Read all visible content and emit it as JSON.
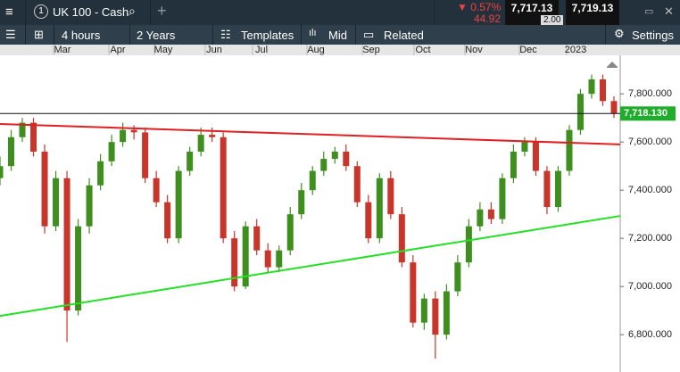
{
  "header": {
    "instrument": "UK 100 - Cash",
    "change_pct": "0.57%",
    "change_pts": "44.92",
    "sell": "7,717.13",
    "buy": "7,719.13",
    "spread": "2.00"
  },
  "toolbar": {
    "interval": "4 hours",
    "range": "2 Years",
    "templates": "Templates",
    "price_type": "Mid",
    "related": "Related",
    "settings": "Settings"
  },
  "chart_data": {
    "type": "candlestick",
    "x_labels": [
      "Mar",
      "Apr",
      "May",
      "Jun",
      "Jul",
      "Aug",
      "Sep",
      "Oct",
      "Nov",
      "Dec",
      "2023"
    ],
    "open": [
      7450,
      7500,
      7620,
      7680,
      7560,
      7250,
      7450,
      6900,
      7250,
      7420,
      7520,
      7600,
      7650,
      7640,
      7450,
      7350,
      7200,
      7480,
      7560,
      7630,
      7620,
      7200,
      7000,
      7250,
      7150,
      7080,
      7150,
      7300,
      7400,
      7480,
      7530,
      7560,
      7500,
      7350,
      7200,
      7450,
      7300,
      7100,
      6850,
      6950,
      6800,
      6980,
      7100,
      7250,
      7320,
      7280,
      7450,
      7560,
      7600,
      7480,
      7330,
      7480,
      7650,
      7800,
      7860,
      7770
    ],
    "high": [
      7540,
      7650,
      7700,
      7700,
      7590,
      7480,
      7480,
      7280,
      7450,
      7550,
      7630,
      7680,
      7670,
      7660,
      7480,
      7380,
      7500,
      7580,
      7660,
      7660,
      7640,
      7230,
      7270,
      7280,
      7180,
      7170,
      7330,
      7430,
      7500,
      7560,
      7580,
      7590,
      7520,
      7380,
      7470,
      7480,
      7330,
      7130,
      6970,
      6980,
      7010,
      7130,
      7280,
      7350,
      7350,
      7470,
      7590,
      7620,
      7620,
      7500,
      7500,
      7670,
      7820,
      7880,
      7880,
      7790
    ],
    "low": [
      7420,
      7480,
      7600,
      7540,
      7220,
      7230,
      6770,
      6880,
      7220,
      7400,
      7500,
      7580,
      7610,
      7430,
      7330,
      7180,
      7180,
      7460,
      7540,
      7600,
      7180,
      6980,
      6990,
      7130,
      7060,
      7060,
      7130,
      7280,
      7380,
      7460,
      7510,
      7480,
      7330,
      7180,
      7180,
      7280,
      7080,
      6830,
      6820,
      6700,
      6780,
      6960,
      7080,
      7230,
      7260,
      7260,
      7430,
      7540,
      7460,
      7300,
      7310,
      7460,
      7630,
      7780,
      7750,
      7700
    ],
    "close": [
      7500,
      7620,
      7680,
      7560,
      7250,
      7450,
      6900,
      7250,
      7420,
      7520,
      7600,
      7650,
      7640,
      7450,
      7350,
      7200,
      7480,
      7560,
      7630,
      7620,
      7200,
      7000,
      7250,
      7150,
      7080,
      7150,
      7300,
      7400,
      7480,
      7530,
      7560,
      7500,
      7350,
      7200,
      7450,
      7300,
      7100,
      6850,
      6950,
      6800,
      6980,
      7100,
      7250,
      7320,
      7280,
      7450,
      7560,
      7600,
      7480,
      7330,
      7480,
      7650,
      7800,
      7860,
      7770,
      7718
    ],
    "up_color": "#3f8f1f",
    "down_color": "#c8352b",
    "ylim": [
      6645,
      7960
    ],
    "yticks": [
      {
        "value": 6800,
        "label": "6,800.000"
      },
      {
        "value": 7000,
        "label": "7,000.000"
      },
      {
        "value": 7200,
        "label": "7,200.000"
      },
      {
        "value": 7400,
        "label": "7,400.000"
      },
      {
        "value": 7600,
        "label": "7,600.000"
      },
      {
        "value": 7800,
        "label": "7,800.000"
      }
    ],
    "trendlines": [
      {
        "color": "#e02020",
        "values": [
          7675,
          7590
        ]
      },
      {
        "color": "#22e022",
        "values": [
          6878,
          7293
        ]
      }
    ],
    "current_price": {
      "value": 7718.13,
      "label": "7,718.130",
      "color": "#1fae2a"
    }
  }
}
